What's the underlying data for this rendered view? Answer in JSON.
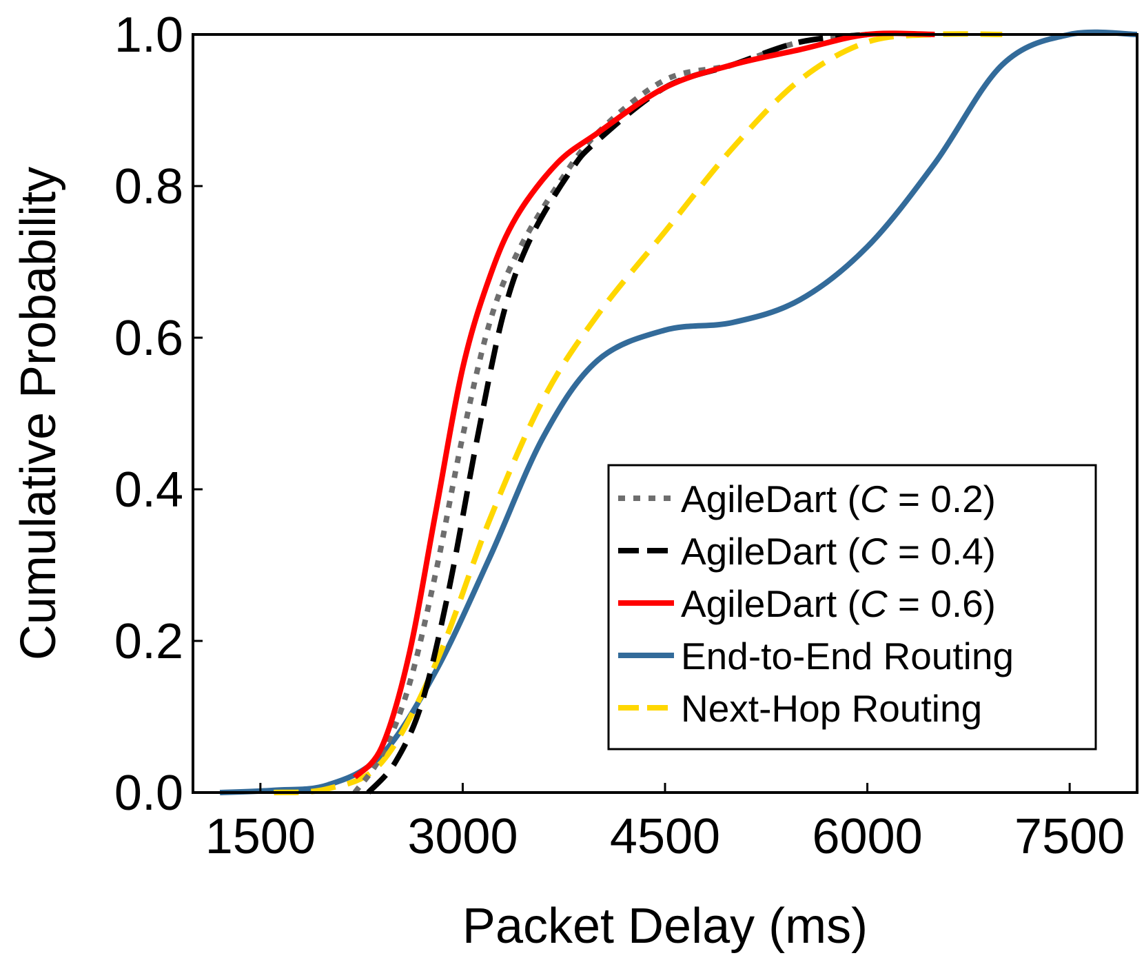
{
  "chart_data": {
    "type": "line",
    "title": "",
    "xlabel": "Packet Delay (ms)",
    "ylabel": "Cumulative Probability",
    "xlim": [
      1000,
      8000
    ],
    "ylim": [
      0,
      1.0
    ],
    "xticks": [
      1500,
      3000,
      4500,
      6000,
      7500
    ],
    "xtick_labels": [
      "1500",
      "3000",
      "4500",
      "6000",
      "7500"
    ],
    "yticks": [
      0,
      0.2,
      0.4,
      0.6,
      0.8,
      1.0
    ],
    "ytick_labels": [
      "0.0",
      "0.2",
      "0.4",
      "0.6",
      "0.8",
      "1.0"
    ],
    "grid": false,
    "legend_position": "bottom-right",
    "series": [
      {
        "name": "AgileDart (C = 0.2)",
        "name_prefix": "AgileDart (",
        "name_italic": "C",
        "name_suffix": " = 0.2)",
        "color": "#6e6e6e",
        "style": "dotted",
        "x": [
          2200,
          2400,
          2600,
          2800,
          3000,
          3200,
          3400,
          3700,
          4000,
          4500,
          5000,
          5500,
          6000
        ],
        "y": [
          0.0,
          0.05,
          0.14,
          0.29,
          0.47,
          0.62,
          0.71,
          0.8,
          0.87,
          0.94,
          0.96,
          0.99,
          1.0
        ]
      },
      {
        "name": "AgileDart (C = 0.4)",
        "name_prefix": "AgileDart (",
        "name_italic": "C",
        "name_suffix": " = 0.4)",
        "color": "#000000",
        "style": "dashed",
        "x": [
          2300,
          2500,
          2700,
          2900,
          3100,
          3300,
          3500,
          3800,
          4000,
          4500,
          5000,
          5500,
          6000
        ],
        "y": [
          0.0,
          0.04,
          0.12,
          0.27,
          0.46,
          0.63,
          0.73,
          0.82,
          0.86,
          0.93,
          0.96,
          0.99,
          1.0
        ]
      },
      {
        "name": "AgileDart (C = 0.6)",
        "name_prefix": "AgileDart (",
        "name_italic": "C",
        "name_suffix": " = 0.6)",
        "color": "#ff0000",
        "style": "solid",
        "x": [
          2200,
          2400,
          2600,
          2800,
          3000,
          3200,
          3400,
          3700,
          4000,
          4500,
          5000,
          5500,
          6000,
          6500
        ],
        "y": [
          0.02,
          0.06,
          0.18,
          0.37,
          0.56,
          0.68,
          0.76,
          0.83,
          0.87,
          0.93,
          0.96,
          0.98,
          1.0,
          1.0
        ]
      },
      {
        "name": "End-to-End Routing",
        "color": "#336b9a",
        "style": "solid",
        "x": [
          1200,
          1600,
          2000,
          2400,
          2800,
          3200,
          3600,
          4000,
          4500,
          5000,
          5500,
          6000,
          6500,
          7000,
          7500,
          8000
        ],
        "y": [
          0.0,
          0.003,
          0.01,
          0.05,
          0.16,
          0.31,
          0.47,
          0.57,
          0.61,
          0.62,
          0.65,
          0.72,
          0.83,
          0.96,
          1.0,
          1.0
        ]
      },
      {
        "name": "Next-Hop Routing",
        "color": "#ffd700",
        "style": "dashed",
        "x": [
          1600,
          2000,
          2400,
          2800,
          3200,
          3600,
          4000,
          4500,
          5000,
          5500,
          6000,
          6500,
          7000
        ],
        "y": [
          0.0,
          0.005,
          0.04,
          0.17,
          0.36,
          0.52,
          0.63,
          0.74,
          0.85,
          0.94,
          0.99,
          1.0,
          1.0
        ]
      }
    ]
  }
}
